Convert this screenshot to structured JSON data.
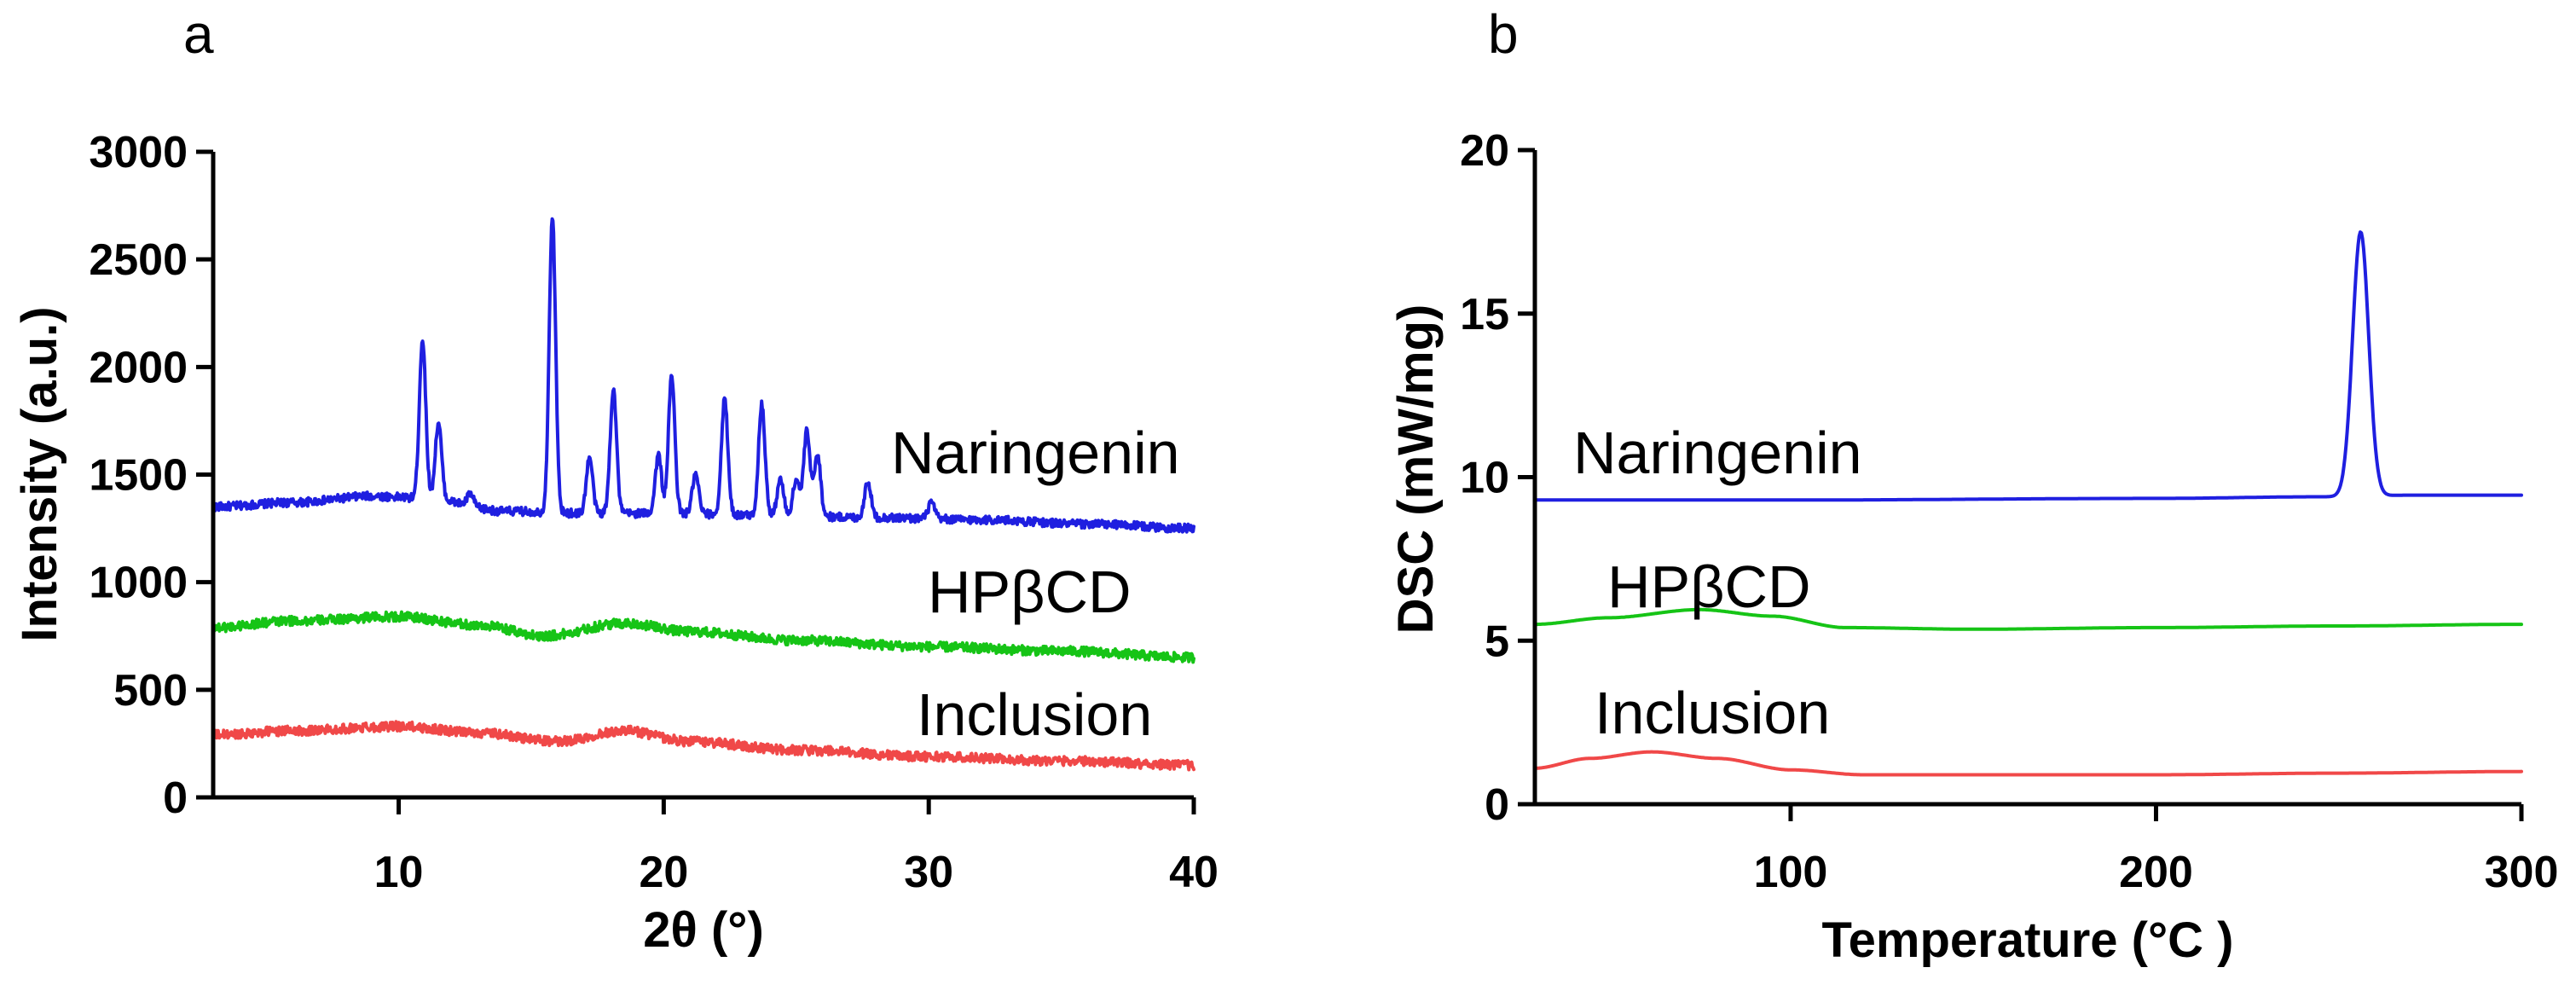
{
  "chart_data": [
    {
      "type": "line",
      "panel_label": "a",
      "title": "",
      "xlabel": "2θ (°)",
      "ylabel": "Intensity (a.u.)",
      "xlim": [
        3,
        40
      ],
      "ylim": [
        0,
        3000
      ],
      "xticks": [
        10,
        20,
        30,
        40
      ],
      "yticks": [
        0,
        500,
        1000,
        1500,
        2000,
        2500,
        3000
      ],
      "grid": false,
      "series": [
        {
          "name": "Naringenin",
          "color": "#1f1fe0",
          "baseline": [
            [
              3,
              1350
            ],
            [
              6,
              1370
            ],
            [
              9,
              1400
            ],
            [
              11,
              1390
            ],
            [
              14,
              1330
            ],
            [
              17,
              1320
            ],
            [
              20,
              1320
            ],
            [
              24,
              1310
            ],
            [
              28,
              1300
            ],
            [
              32,
              1290
            ],
            [
              36,
              1270
            ],
            [
              40,
              1250
            ]
          ],
          "peaks": [
            {
              "x": 10.9,
              "y": 2130
            },
            {
              "x": 11.5,
              "y": 1740
            },
            {
              "x": 12.7,
              "y": 1410
            },
            {
              "x": 15.8,
              "y": 2700
            },
            {
              "x": 17.2,
              "y": 1580
            },
            {
              "x": 18.1,
              "y": 1900
            },
            {
              "x": 19.8,
              "y": 1590
            },
            {
              "x": 20.3,
              "y": 1960
            },
            {
              "x": 21.2,
              "y": 1500
            },
            {
              "x": 22.3,
              "y": 1850
            },
            {
              "x": 23.7,
              "y": 1830
            },
            {
              "x": 24.4,
              "y": 1480
            },
            {
              "x": 25.0,
              "y": 1480
            },
            {
              "x": 25.4,
              "y": 1700
            },
            {
              "x": 25.8,
              "y": 1600
            },
            {
              "x": 27.7,
              "y": 1470
            },
            {
              "x": 30.1,
              "y": 1370
            }
          ]
        },
        {
          "name": "HPβCD",
          "color": "#16c416",
          "baseline": [
            [
              3,
              790
            ],
            [
              6,
              820
            ],
            [
              10,
              840
            ],
            [
              13,
              800
            ],
            [
              15.5,
              750
            ],
            [
              18.5,
              810
            ],
            [
              21,
              770
            ],
            [
              25,
              730
            ],
            [
              30,
              700
            ],
            [
              35,
              680
            ],
            [
              40,
              650
            ]
          ],
          "peaks": []
        },
        {
          "name": "Inclusion",
          "color": "#f04848",
          "baseline": [
            [
              3,
              290
            ],
            [
              6,
              310
            ],
            [
              10,
              330
            ],
            [
              13,
              300
            ],
            [
              16,
              260
            ],
            [
              18.5,
              310
            ],
            [
              21,
              260
            ],
            [
              25,
              220
            ],
            [
              30,
              190
            ],
            [
              35,
              170
            ],
            [
              40,
              150
            ]
          ],
          "peaks": []
        }
      ]
    },
    {
      "type": "line",
      "panel_label": "b",
      "title": "",
      "xlabel": "Temperature (°C )",
      "ylabel": "DSC (mW/mg)",
      "xlim": [
        30,
        300
      ],
      "ylim": [
        0,
        20
      ],
      "xticks": [
        100,
        200,
        300
      ],
      "yticks": [
        0,
        5,
        10,
        15,
        20
      ],
      "grid": false,
      "series": [
        {
          "name": "Naringenin",
          "color": "#1f1fe0",
          "baseline": [
            [
              30,
              9.3
            ],
            [
              100,
              9.3
            ],
            [
              200,
              9.35
            ],
            [
              245,
              9.4
            ],
            [
              270,
              9.45
            ],
            [
              300,
              9.45
            ]
          ],
          "peaks": [
            {
              "x": 256,
              "y": 17.5,
              "width": 2.2
            }
          ]
        },
        {
          "name": "HPβCD",
          "color": "#16c416",
          "baseline": [
            [
              30,
              5.5
            ],
            [
              50,
              5.7
            ],
            [
              75,
              5.95
            ],
            [
              95,
              5.75
            ],
            [
              115,
              5.4
            ],
            [
              150,
              5.35
            ],
            [
              200,
              5.4
            ],
            [
              250,
              5.45
            ],
            [
              300,
              5.5
            ]
          ],
          "peaks": []
        },
        {
          "name": "Inclusion",
          "color": "#f04848",
          "baseline": [
            [
              30,
              1.1
            ],
            [
              45,
              1.4
            ],
            [
              62,
              1.6
            ],
            [
              80,
              1.4
            ],
            [
              100,
              1.05
            ],
            [
              120,
              0.9
            ],
            [
              200,
              0.9
            ],
            [
              250,
              0.95
            ],
            [
              300,
              1.0
            ]
          ],
          "peaks": []
        }
      ]
    }
  ]
}
